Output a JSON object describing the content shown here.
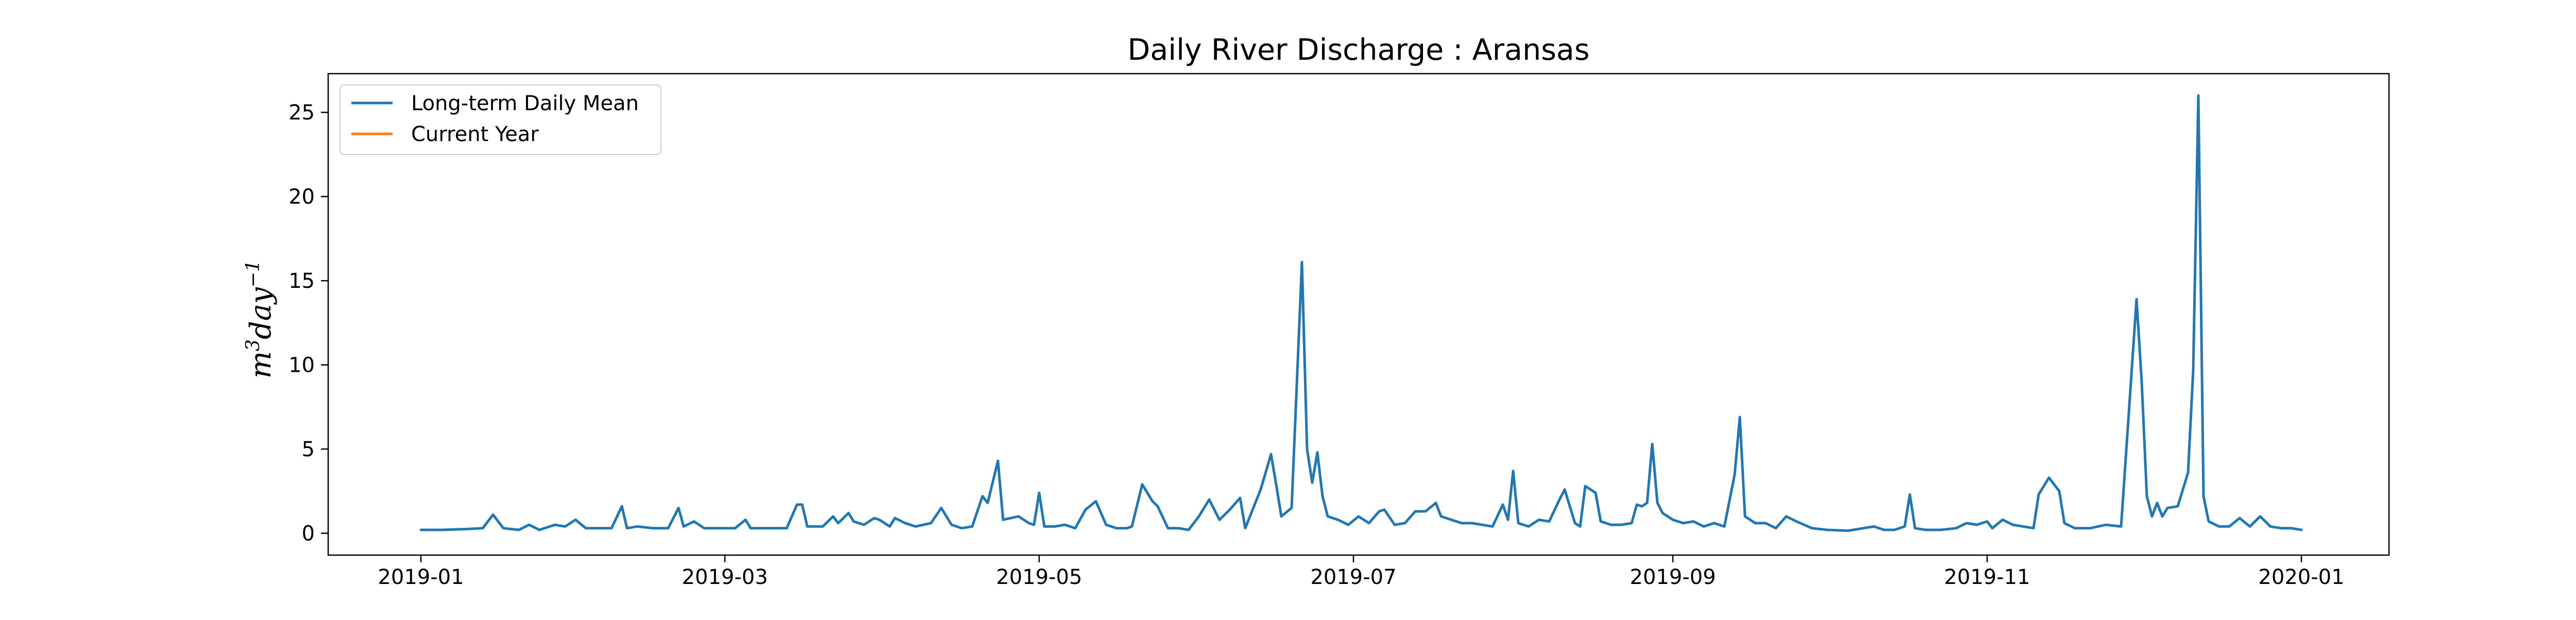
{
  "chart_data": {
    "type": "line",
    "title": "Daily River Discharge : Aransas",
    "ylabel": "m^3 day^-1",
    "ylabel_parts": {
      "base1": "m",
      "sup1": "3",
      "base2": "day",
      "sup2": "−1"
    },
    "xlabel": "",
    "xlim": [
      "2018-12-14",
      "2020-01-18"
    ],
    "ylim": [
      -1.3,
      27.3
    ],
    "x_ticks": [
      {
        "date": "2019-01-01",
        "label": "2019-01"
      },
      {
        "date": "2019-03-01",
        "label": "2019-03"
      },
      {
        "date": "2019-05-01",
        "label": "2019-05"
      },
      {
        "date": "2019-07-01",
        "label": "2019-07"
      },
      {
        "date": "2019-09-01",
        "label": "2019-09"
      },
      {
        "date": "2019-11-01",
        "label": "2019-11"
      },
      {
        "date": "2020-01-01",
        "label": "2020-01"
      }
    ],
    "y_ticks": [
      {
        "value": 0,
        "label": "0"
      },
      {
        "value": 5,
        "label": "5"
      },
      {
        "value": 10,
        "label": "10"
      },
      {
        "value": 15,
        "label": "15"
      },
      {
        "value": 20,
        "label": "20"
      },
      {
        "value": 25,
        "label": "25"
      }
    ],
    "grid": false,
    "legend_position": "top-left",
    "series": [
      {
        "name": "Long-term Daily Mean",
        "color": "#1f77b4",
        "points": [
          [
            "2019-01-01",
            0.2
          ],
          [
            "2019-01-05",
            0.2
          ],
          [
            "2019-01-10",
            0.25
          ],
          [
            "2019-01-13",
            0.3
          ],
          [
            "2019-01-15",
            1.1
          ],
          [
            "2019-01-17",
            0.3
          ],
          [
            "2019-01-20",
            0.2
          ],
          [
            "2019-01-22",
            0.5
          ],
          [
            "2019-01-24",
            0.2
          ],
          [
            "2019-01-27",
            0.5
          ],
          [
            "2019-01-29",
            0.4
          ],
          [
            "2019-01-31",
            0.8
          ],
          [
            "2019-02-02",
            0.3
          ],
          [
            "2019-02-05",
            0.3
          ],
          [
            "2019-02-07",
            0.3
          ],
          [
            "2019-02-09",
            1.6
          ],
          [
            "2019-02-10",
            0.3
          ],
          [
            "2019-02-12",
            0.4
          ],
          [
            "2019-02-15",
            0.3
          ],
          [
            "2019-02-18",
            0.3
          ],
          [
            "2019-02-20",
            1.5
          ],
          [
            "2019-02-21",
            0.4
          ],
          [
            "2019-02-23",
            0.7
          ],
          [
            "2019-02-25",
            0.3
          ],
          [
            "2019-02-28",
            0.3
          ],
          [
            "2019-03-03",
            0.3
          ],
          [
            "2019-03-05",
            0.8
          ],
          [
            "2019-03-06",
            0.3
          ],
          [
            "2019-03-09",
            0.3
          ],
          [
            "2019-03-11",
            0.3
          ],
          [
            "2019-03-13",
            0.3
          ],
          [
            "2019-03-15",
            1.7
          ],
          [
            "2019-03-16",
            1.7
          ],
          [
            "2019-03-17",
            0.4
          ],
          [
            "2019-03-20",
            0.4
          ],
          [
            "2019-03-22",
            1.0
          ],
          [
            "2019-03-23",
            0.6
          ],
          [
            "2019-03-25",
            1.2
          ],
          [
            "2019-03-26",
            0.7
          ],
          [
            "2019-03-28",
            0.5
          ],
          [
            "2019-03-30",
            0.9
          ],
          [
            "2019-03-31",
            0.8
          ],
          [
            "2019-04-02",
            0.4
          ],
          [
            "2019-04-03",
            0.9
          ],
          [
            "2019-04-05",
            0.6
          ],
          [
            "2019-04-07",
            0.4
          ],
          [
            "2019-04-10",
            0.6
          ],
          [
            "2019-04-12",
            1.5
          ],
          [
            "2019-04-14",
            0.5
          ],
          [
            "2019-04-16",
            0.3
          ],
          [
            "2019-04-18",
            0.4
          ],
          [
            "2019-04-20",
            2.2
          ],
          [
            "2019-04-21",
            1.8
          ],
          [
            "2019-04-23",
            4.3
          ],
          [
            "2019-04-24",
            0.8
          ],
          [
            "2019-04-27",
            1.0
          ],
          [
            "2019-04-29",
            0.6
          ],
          [
            "2019-04-30",
            0.5
          ],
          [
            "2019-05-01",
            2.4
          ],
          [
            "2019-05-02",
            0.4
          ],
          [
            "2019-05-04",
            0.4
          ],
          [
            "2019-05-06",
            0.5
          ],
          [
            "2019-05-08",
            0.3
          ],
          [
            "2019-05-10",
            1.4
          ],
          [
            "2019-05-12",
            1.9
          ],
          [
            "2019-05-14",
            0.5
          ],
          [
            "2019-05-16",
            0.3
          ],
          [
            "2019-05-18",
            0.3
          ],
          [
            "2019-05-19",
            0.4
          ],
          [
            "2019-05-21",
            2.9
          ],
          [
            "2019-05-23",
            1.9
          ],
          [
            "2019-05-24",
            1.6
          ],
          [
            "2019-05-26",
            0.3
          ],
          [
            "2019-05-28",
            0.3
          ],
          [
            "2019-05-30",
            0.2
          ],
          [
            "2019-06-01",
            1.0
          ],
          [
            "2019-06-03",
            2.0
          ],
          [
            "2019-06-05",
            0.8
          ],
          [
            "2019-06-07",
            1.4
          ],
          [
            "2019-06-09",
            2.1
          ],
          [
            "2019-06-10",
            0.3
          ],
          [
            "2019-06-13",
            2.6
          ],
          [
            "2019-06-15",
            4.7
          ],
          [
            "2019-06-16",
            2.9
          ],
          [
            "2019-06-17",
            1.0
          ],
          [
            "2019-06-19",
            1.5
          ],
          [
            "2019-06-21",
            16.1
          ],
          [
            "2019-06-22",
            5.0
          ],
          [
            "2019-06-23",
            3.0
          ],
          [
            "2019-06-24",
            4.8
          ],
          [
            "2019-06-25",
            2.2
          ],
          [
            "2019-06-26",
            1.0
          ],
          [
            "2019-06-28",
            0.8
          ],
          [
            "2019-06-30",
            0.5
          ],
          [
            "2019-07-02",
            1.0
          ],
          [
            "2019-07-04",
            0.6
          ],
          [
            "2019-07-06",
            1.3
          ],
          [
            "2019-07-07",
            1.4
          ],
          [
            "2019-07-09",
            0.5
          ],
          [
            "2019-07-11",
            0.6
          ],
          [
            "2019-07-13",
            1.3
          ],
          [
            "2019-07-15",
            1.3
          ],
          [
            "2019-07-17",
            1.8
          ],
          [
            "2019-07-18",
            1.0
          ],
          [
            "2019-07-20",
            0.8
          ],
          [
            "2019-07-22",
            0.6
          ],
          [
            "2019-07-24",
            0.6
          ],
          [
            "2019-07-26",
            0.5
          ],
          [
            "2019-07-28",
            0.4
          ],
          [
            "2019-07-30",
            1.7
          ],
          [
            "2019-07-31",
            0.8
          ],
          [
            "2019-08-01",
            3.7
          ],
          [
            "2019-08-02",
            0.6
          ],
          [
            "2019-08-04",
            0.4
          ],
          [
            "2019-08-06",
            0.8
          ],
          [
            "2019-08-08",
            0.7
          ],
          [
            "2019-08-10",
            2.0
          ],
          [
            "2019-08-11",
            2.6
          ],
          [
            "2019-08-13",
            0.6
          ],
          [
            "2019-08-14",
            0.4
          ],
          [
            "2019-08-15",
            2.8
          ],
          [
            "2019-08-17",
            2.4
          ],
          [
            "2019-08-18",
            0.7
          ],
          [
            "2019-08-20",
            0.5
          ],
          [
            "2019-08-22",
            0.5
          ],
          [
            "2019-08-24",
            0.6
          ],
          [
            "2019-08-25",
            1.7
          ],
          [
            "2019-08-26",
            1.6
          ],
          [
            "2019-08-27",
            1.8
          ],
          [
            "2019-08-28",
            5.3
          ],
          [
            "2019-08-29",
            1.8
          ],
          [
            "2019-08-30",
            1.2
          ],
          [
            "2019-09-01",
            0.8
          ],
          [
            "2019-09-03",
            0.6
          ],
          [
            "2019-09-05",
            0.7
          ],
          [
            "2019-09-07",
            0.4
          ],
          [
            "2019-09-09",
            0.6
          ],
          [
            "2019-09-11",
            0.4
          ],
          [
            "2019-09-13",
            3.5
          ],
          [
            "2019-09-14",
            6.9
          ],
          [
            "2019-09-15",
            1.0
          ],
          [
            "2019-09-17",
            0.6
          ],
          [
            "2019-09-19",
            0.6
          ],
          [
            "2019-09-21",
            0.3
          ],
          [
            "2019-09-23",
            1.0
          ],
          [
            "2019-09-25",
            0.7
          ],
          [
            "2019-09-28",
            0.3
          ],
          [
            "2019-10-01",
            0.2
          ],
          [
            "2019-10-05",
            0.15
          ],
          [
            "2019-10-08",
            0.3
          ],
          [
            "2019-10-10",
            0.4
          ],
          [
            "2019-10-12",
            0.2
          ],
          [
            "2019-10-14",
            0.2
          ],
          [
            "2019-10-16",
            0.4
          ],
          [
            "2019-10-17",
            2.3
          ],
          [
            "2019-10-18",
            0.3
          ],
          [
            "2019-10-20",
            0.2
          ],
          [
            "2019-10-23",
            0.2
          ],
          [
            "2019-10-26",
            0.3
          ],
          [
            "2019-10-28",
            0.6
          ],
          [
            "2019-10-30",
            0.5
          ],
          [
            "2019-11-01",
            0.7
          ],
          [
            "2019-11-02",
            0.3
          ],
          [
            "2019-11-04",
            0.8
          ],
          [
            "2019-11-06",
            0.5
          ],
          [
            "2019-11-08",
            0.4
          ],
          [
            "2019-11-10",
            0.3
          ],
          [
            "2019-11-11",
            2.3
          ],
          [
            "2019-11-13",
            3.3
          ],
          [
            "2019-11-15",
            2.5
          ],
          [
            "2019-11-16",
            0.6
          ],
          [
            "2019-11-18",
            0.3
          ],
          [
            "2019-11-21",
            0.3
          ],
          [
            "2019-11-24",
            0.5
          ],
          [
            "2019-11-27",
            0.4
          ],
          [
            "2019-11-29",
            9.4
          ],
          [
            "2019-11-30",
            13.9
          ],
          [
            "2019-12-01",
            9.0
          ],
          [
            "2019-12-02",
            2.2
          ],
          [
            "2019-12-03",
            1.0
          ],
          [
            "2019-12-04",
            1.8
          ],
          [
            "2019-12-05",
            1.0
          ],
          [
            "2019-12-06",
            1.5
          ],
          [
            "2019-12-08",
            1.6
          ],
          [
            "2019-12-10",
            3.6
          ],
          [
            "2019-12-11",
            9.7
          ],
          [
            "2019-12-12",
            26.0
          ],
          [
            "2019-12-13",
            2.2
          ],
          [
            "2019-12-14",
            0.7
          ],
          [
            "2019-12-16",
            0.4
          ],
          [
            "2019-12-18",
            0.4
          ],
          [
            "2019-12-20",
            0.9
          ],
          [
            "2019-12-22",
            0.4
          ],
          [
            "2019-12-24",
            1.0
          ],
          [
            "2019-12-26",
            0.4
          ],
          [
            "2019-12-28",
            0.3
          ],
          [
            "2019-12-30",
            0.3
          ],
          [
            "2020-01-01",
            0.2
          ]
        ]
      },
      {
        "name": "Current Year",
        "color": "#ff7f0e",
        "points": []
      }
    ]
  }
}
